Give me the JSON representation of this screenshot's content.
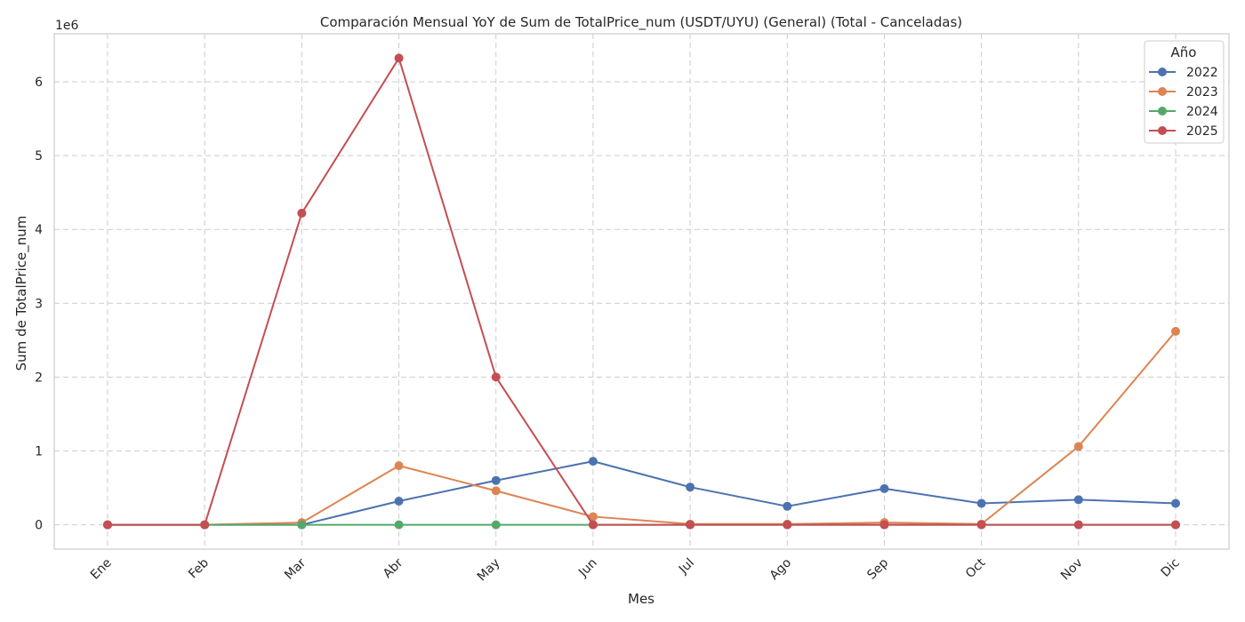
{
  "chart_data": {
    "type": "line",
    "title": "Comparación Mensual YoY de Sum de TotalPrice_num (USDT/UYU) (General) (Total - Canceladas)",
    "xlabel": "Mes",
    "ylabel": "Sum de TotalPrice_num",
    "y_offset_label": "1e6",
    "categories": [
      "Ene",
      "Feb",
      "Mar",
      "Abr",
      "May",
      "Jun",
      "Jul",
      "Ago",
      "Sep",
      "Oct",
      "Nov",
      "Dic"
    ],
    "yticks": [
      "0",
      "1",
      "2",
      "3",
      "4",
      "5",
      "6"
    ],
    "ylim": [
      -0.33,
      6.65
    ],
    "grid": true,
    "legend_title": "Año",
    "legend_position": "top-right",
    "series": [
      {
        "name": "2022",
        "color": "#4c72b0",
        "values": [
          0,
          0,
          0,
          0.32,
          0.6,
          0.86,
          0.51,
          0.25,
          0.49,
          0.29,
          0.34,
          0.29
        ]
      },
      {
        "name": "2023",
        "color": "#dd8452",
        "values": [
          0,
          0,
          0.03,
          0.8,
          0.46,
          0.11,
          0.01,
          0.01,
          0.03,
          0.01,
          1.06,
          2.62
        ]
      },
      {
        "name": "2024",
        "color": "#55a868",
        "values": [
          0,
          0,
          0,
          0,
          0,
          0,
          0,
          0,
          0,
          0,
          0,
          0
        ]
      },
      {
        "name": "2025",
        "color": "#c44e52",
        "values": [
          0,
          0,
          4.22,
          6.32,
          2.0,
          0,
          0,
          0,
          0,
          0,
          0,
          0
        ]
      }
    ]
  }
}
